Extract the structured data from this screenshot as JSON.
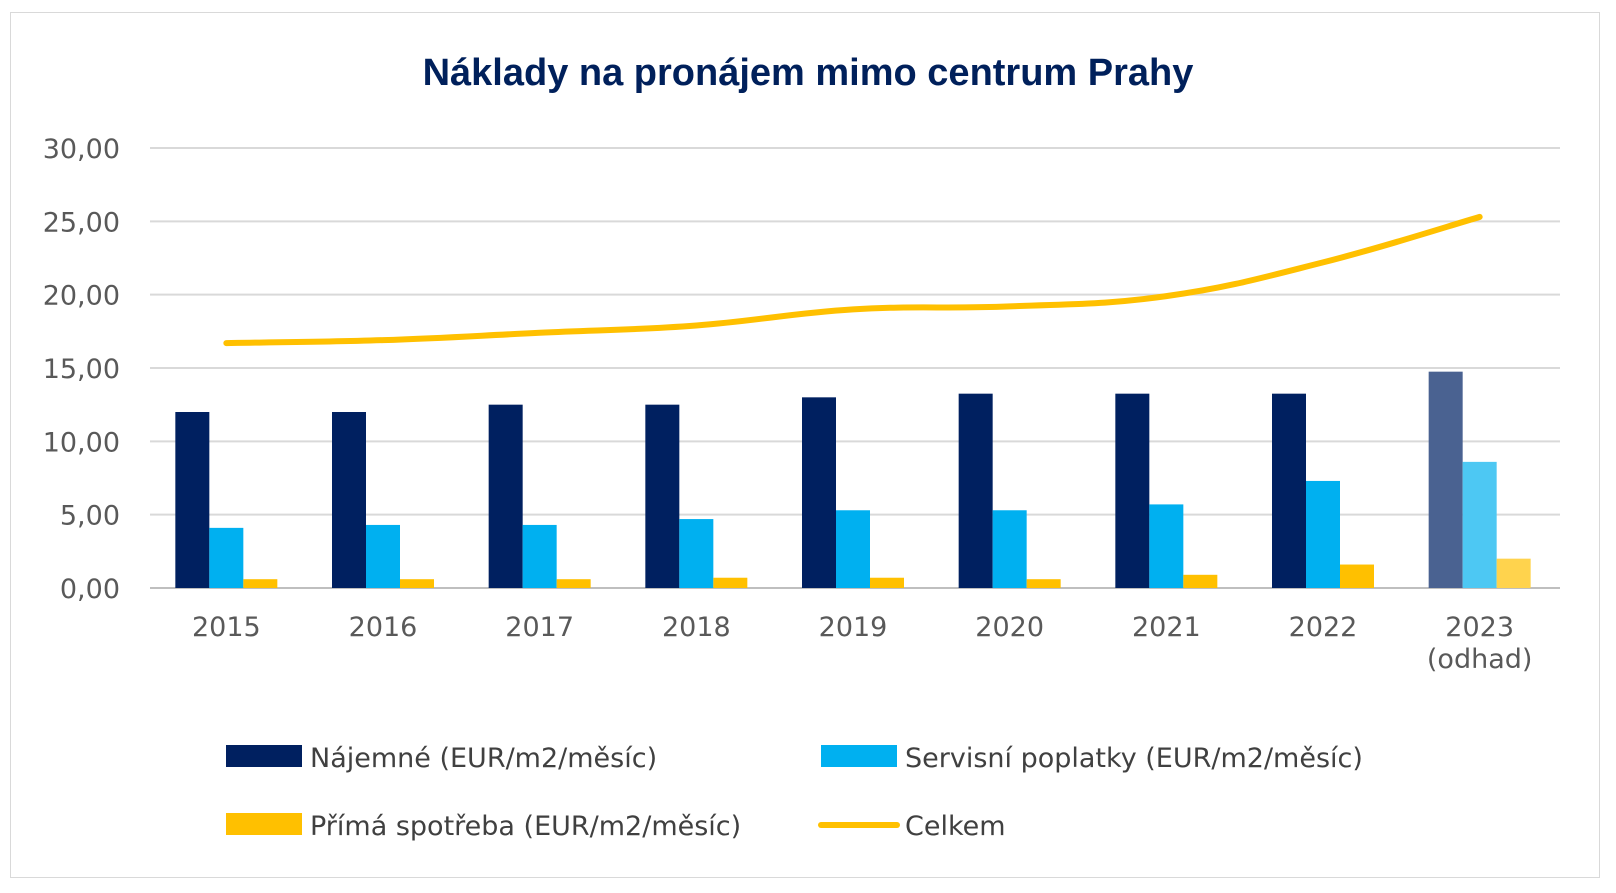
{
  "chart_data": {
    "type": "bar",
    "title": "Náklady na pronájem mimo centrum Prahy",
    "xlabel": "",
    "ylabel": "",
    "ylim": [
      0,
      30
    ],
    "yticks": [
      "0,00",
      "5,00",
      "10,00",
      "15,00",
      "20,00",
      "25,00",
      "30,00"
    ],
    "categories": [
      "2015",
      "2016",
      "2017",
      "2018",
      "2019",
      "2020",
      "2021",
      "2022",
      "2023 (odhad)"
    ],
    "category_lines": [
      [
        "2015"
      ],
      [
        "2016"
      ],
      [
        "2017"
      ],
      [
        "2018"
      ],
      [
        "2019"
      ],
      [
        "2020"
      ],
      [
        "2021"
      ],
      [
        "2022"
      ],
      [
        "2023",
        "(odhad)"
      ]
    ],
    "grid": true,
    "legend_position": "bottom",
    "estimate_highlight_last": true,
    "series": [
      {
        "name": "Nájemné (EUR/m2/měsíc)",
        "kind": "bar",
        "color": "#002060",
        "estimate_color": "#4a6291",
        "values": [
          12.0,
          12.0,
          12.5,
          12.5,
          13.0,
          13.25,
          13.25,
          13.25,
          14.75
        ]
      },
      {
        "name": "Servisní poplatky (EUR/m2/měsíc)",
        "kind": "bar",
        "color": "#00b0f0",
        "estimate_color": "#4dc8f3",
        "values": [
          4.1,
          4.3,
          4.3,
          4.7,
          5.3,
          5.3,
          5.7,
          7.3,
          8.6
        ]
      },
      {
        "name": "Přímá spotřeba (EUR/m2/měsíc)",
        "kind": "bar",
        "color": "#ffc000",
        "estimate_color": "#ffd34d",
        "values": [
          0.6,
          0.6,
          0.6,
          0.7,
          0.7,
          0.6,
          0.9,
          1.6,
          2.0
        ]
      },
      {
        "name": "Celkem",
        "kind": "line",
        "color": "#ffc000",
        "values": [
          16.7,
          16.9,
          17.4,
          17.9,
          19.0,
          19.2,
          19.9,
          22.2,
          25.3
        ]
      }
    ]
  }
}
